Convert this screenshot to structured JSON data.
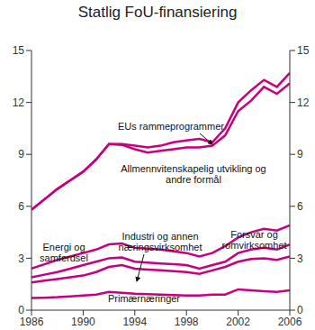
{
  "chart_data": {
    "type": "line",
    "title": "Statlig FoU-finansiering",
    "stacked": true,
    "x": [
      1986,
      1987,
      1988,
      1989,
      1990,
      1991,
      1992,
      1993,
      1994,
      1995,
      1996,
      1997,
      1998,
      1999,
      2000,
      2001,
      2002,
      2003,
      2004,
      2005,
      2006
    ],
    "xlim": [
      1986,
      2006
    ],
    "xticks": [
      1986,
      1990,
      1994,
      1998,
      2002,
      2006
    ],
    "ylim": [
      0,
      15
    ],
    "yticks": [
      0,
      3,
      6,
      9,
      12,
      15
    ],
    "series": [
      {
        "name": "Primærnæringer",
        "color": "#c8007e",
        "values": [
          0.7,
          0.72,
          0.75,
          0.8,
          0.85,
          0.9,
          1.05,
          1.0,
          0.95,
          0.92,
          0.9,
          0.87,
          0.85,
          0.85,
          0.9,
          0.9,
          1.2,
          1.15,
          1.1,
          1.05,
          1.15
        ]
      },
      {
        "name": "Industri og annen næringsvirksomhet",
        "color": "#c8007e",
        "values": [
          0.9,
          0.98,
          1.05,
          1.1,
          1.15,
          1.3,
          1.45,
          1.6,
          1.45,
          1.43,
          1.4,
          1.38,
          1.35,
          1.25,
          1.4,
          1.6,
          1.6,
          1.8,
          1.9,
          1.85,
          1.95
        ]
      },
      {
        "name": "Energi og samferdsel",
        "color": "#c8007e",
        "values": [
          0.3,
          0.35,
          0.4,
          0.5,
          0.6,
          0.6,
          0.5,
          0.45,
          0.4,
          0.4,
          0.4,
          0.4,
          0.4,
          0.3,
          0.3,
          0.3,
          0.5,
          0.55,
          0.6,
          0.6,
          0.7
        ]
      },
      {
        "name": "Forsvar og romvirksomhet",
        "color": "#c8007e",
        "values": [
          0.5,
          0.6,
          0.7,
          0.7,
          0.7,
          0.7,
          0.8,
          0.8,
          0.8,
          0.8,
          0.8,
          0.75,
          0.7,
          0.7,
          0.7,
          0.9,
          0.9,
          1.0,
          1.1,
          1.1,
          1.1
        ]
      },
      {
        "name": "Allmennvitenskapelig utvikling og andre formål",
        "color": "#c8007e",
        "values": [
          3.4,
          3.75,
          4.1,
          4.4,
          4.7,
          5.2,
          5.8,
          5.7,
          5.7,
          5.55,
          5.7,
          5.9,
          6.1,
          6.3,
          6.2,
          6.4,
          7.3,
          7.6,
          8.2,
          7.9,
          8.2
        ]
      },
      {
        "name": "EUs rammeprogrammer",
        "color": "#c8007e",
        "values": [
          0,
          0,
          0,
          0,
          0,
          0,
          0,
          0.05,
          0.2,
          0.3,
          0.3,
          0.4,
          0.4,
          0.5,
          0.2,
          0.4,
          0.5,
          0.6,
          0.4,
          0.4,
          0.6
        ]
      }
    ]
  }
}
